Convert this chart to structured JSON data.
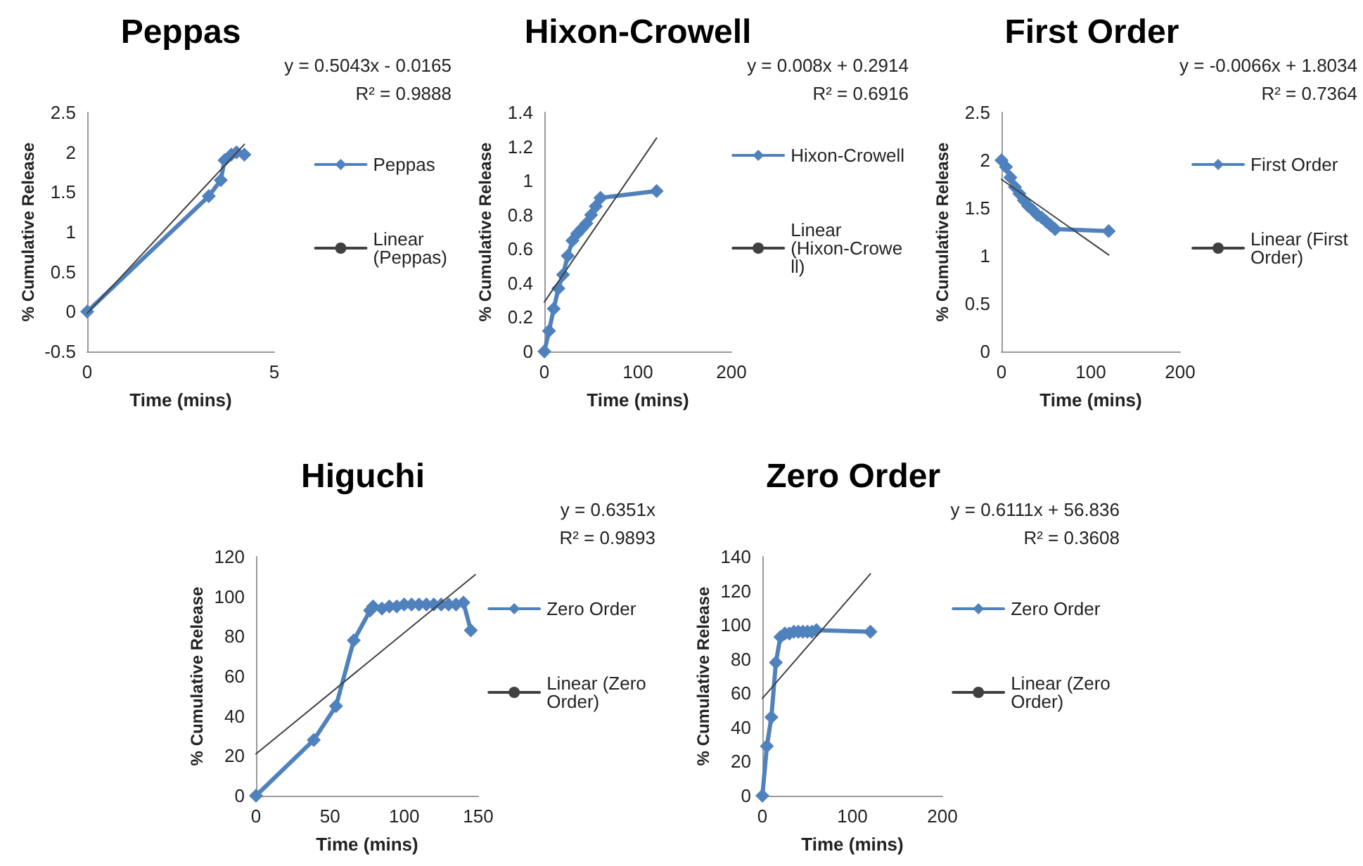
{
  "chart_data": [
    {
      "type": "line",
      "title": "Peppas",
      "xlabel": "Time (mins)",
      "ylabel": "% Cumulative Release",
      "xlim": [
        0,
        5
      ],
      "xticks": [
        0,
        5
      ],
      "ylim": [
        -0.5,
        2.5
      ],
      "yticks": [
        -0.5,
        0,
        0.5,
        1,
        1.5,
        2,
        2.5
      ],
      "legend": "right",
      "annotations": [
        "y = 0.5043x - 0.0165",
        "R² = 0.9888"
      ],
      "series": [
        {
          "name": "Peppas",
          "color": "#4f81bd",
          "marker": "diamond",
          "x": [
            0,
            3.25,
            3.57,
            3.67,
            3.85,
            3.99,
            4.2
          ],
          "values": [
            0,
            1.45,
            1.65,
            1.9,
            1.97,
            2.0,
            1.97
          ]
        },
        {
          "name": "Linear (Peppas)",
          "color": "#404040",
          "marker": "none",
          "x": [
            0,
            4.2
          ],
          "values": [
            -0.02,
            2.1
          ]
        }
      ]
    },
    {
      "type": "line",
      "title": "Hixon-Crowell",
      "xlabel": "Time (mins)",
      "ylabel": "% Cumulative Release",
      "xlim": [
        0,
        200
      ],
      "xticks": [
        0,
        100,
        200
      ],
      "ylim": [
        0,
        1.4
      ],
      "yticks": [
        0,
        0.2,
        0.4,
        0.6,
        0.8,
        1,
        1.2,
        1.4
      ],
      "legend": "right",
      "annotations": [
        "y = 0.008x + 0.2914",
        "R² = 0.6916"
      ],
      "series": [
        {
          "name": "Hixon-Crowell",
          "color": "#4f81bd",
          "marker": "diamond",
          "x": [
            0,
            5,
            10,
            15,
            20,
            25,
            30,
            35,
            40,
            45,
            50,
            55,
            60,
            120
          ],
          "values": [
            0,
            0.12,
            0.25,
            0.37,
            0.45,
            0.56,
            0.65,
            0.69,
            0.72,
            0.75,
            0.8,
            0.85,
            0.9,
            0.94
          ]
        },
        {
          "name": "Linear (Hixon-Crowell)",
          "color": "#404040",
          "marker": "none",
          "x": [
            0,
            120
          ],
          "values": [
            0.29,
            1.25
          ]
        }
      ]
    },
    {
      "type": "line",
      "title": "First Order",
      "xlabel": "Time (mins)",
      "ylabel": "% Cumulative Release",
      "xlim": [
        0,
        200
      ],
      "xticks": [
        0,
        100,
        200
      ],
      "ylim": [
        0,
        2.5
      ],
      "yticks": [
        0,
        0.5,
        1,
        1.5,
        2,
        2.5
      ],
      "legend": "right",
      "annotations": [
        "y = -0.0066x + 1.8034",
        "R² = 0.7364"
      ],
      "series": [
        {
          "name": "First Order",
          "color": "#4f81bd",
          "marker": "diamond",
          "x": [
            0,
            5,
            10,
            15,
            20,
            25,
            30,
            35,
            40,
            45,
            50,
            55,
            60,
            120
          ],
          "values": [
            2.0,
            1.93,
            1.82,
            1.72,
            1.65,
            1.58,
            1.52,
            1.48,
            1.43,
            1.4,
            1.36,
            1.32,
            1.28,
            1.26
          ]
        },
        {
          "name": "Linear (First Order)",
          "color": "#404040",
          "marker": "none",
          "x": [
            0,
            120
          ],
          "values": [
            1.8,
            1.01
          ]
        }
      ]
    },
    {
      "type": "line",
      "title": "Higuchi",
      "xlabel": "Time (mins)",
      "ylabel": "% Cumulative Release",
      "xlim": [
        0,
        150
      ],
      "xticks": [
        0,
        50,
        100,
        150
      ],
      "ylim": [
        0,
        120
      ],
      "yticks": [
        0,
        20,
        40,
        60,
        80,
        100,
        120
      ],
      "legend": "right",
      "annotations": [
        "y = 0.6351x",
        "R² = 0.9893"
      ],
      "series": [
        {
          "name": "Zero Order",
          "color": "#4f81bd",
          "marker": "diamond",
          "x": [
            0,
            39,
            54,
            66,
            77,
            79,
            85,
            90,
            95,
            100,
            105,
            110,
            115,
            120,
            125,
            130,
            135,
            140,
            145
          ],
          "values": [
            0,
            28,
            45,
            78,
            93,
            95,
            94,
            95,
            95,
            96,
            96,
            96,
            96,
            96,
            96,
            96,
            96,
            97,
            83
          ]
        },
        {
          "name": "Linear (Zero Order)",
          "color": "#404040",
          "marker": "none",
          "x": [
            0,
            148
          ],
          "values": [
            21,
            111
          ]
        }
      ]
    },
    {
      "type": "line",
      "title": "Zero Order",
      "xlabel": "Time (mins)",
      "ylabel": "% Cumulative Release",
      "xlim": [
        0,
        200
      ],
      "xticks": [
        0,
        100,
        200
      ],
      "ylim": [
        0,
        140
      ],
      "yticks": [
        0,
        20,
        40,
        60,
        80,
        100,
        120,
        140
      ],
      "legend": "right",
      "annotations": [
        "y = 0.6111x + 56.836",
        "R² = 0.3608"
      ],
      "series": [
        {
          "name": "Zero Order",
          "color": "#4f81bd",
          "marker": "diamond",
          "x": [
            0,
            5,
            10,
            15,
            20,
            25,
            30,
            35,
            40,
            45,
            50,
            55,
            60,
            120
          ],
          "values": [
            0,
            29,
            46,
            78,
            93,
            95,
            95,
            96,
            96,
            96,
            96,
            96,
            97,
            96
          ]
        },
        {
          "name": "Linear (Zero Order)",
          "color": "#404040",
          "marker": "none",
          "x": [
            0,
            120
          ],
          "values": [
            57,
            130
          ]
        }
      ]
    }
  ]
}
